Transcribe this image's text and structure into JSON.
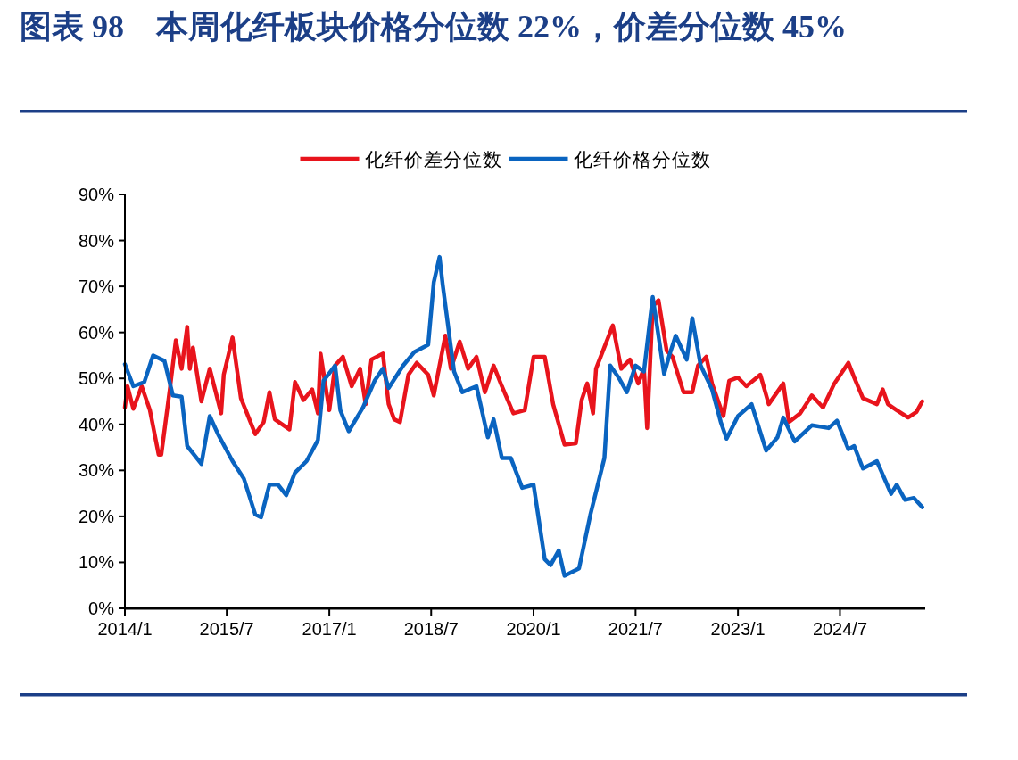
{
  "chart_data": {
    "type": "line",
    "title": "图表 98　本周化纤板块价格分位数 22%，价差分位数 45%",
    "legend": "top",
    "xlim": [
      "2014-01-01",
      "2025-10-01"
    ],
    "xticks": [
      {
        "value": "2014-01",
        "label": "2014/1"
      },
      {
        "value": "2015-07",
        "label": "2015/7"
      },
      {
        "value": "2017-01",
        "label": "2017/1"
      },
      {
        "value": "2018-07",
        "label": "2018/7"
      },
      {
        "value": "2020-01",
        "label": "2020/1"
      },
      {
        "value": "2021-07",
        "label": "2021/7"
      },
      {
        "value": "2023-01",
        "label": "2023/1"
      },
      {
        "value": "2024-07",
        "label": "2024/7"
      }
    ],
    "ylim": [
      0,
      90
    ],
    "yticks": [
      {
        "value": 0,
        "label": "0%"
      },
      {
        "value": 10,
        "label": "10%"
      },
      {
        "value": 20,
        "label": "20%"
      },
      {
        "value": 30,
        "label": "30%"
      },
      {
        "value": 40,
        "label": "40%"
      },
      {
        "value": 50,
        "label": "50%"
      },
      {
        "value": 60,
        "label": "60%"
      },
      {
        "value": 70,
        "label": "70%"
      },
      {
        "value": 80,
        "label": "80%"
      },
      {
        "value": 90,
        "label": "90%"
      }
    ],
    "series": [
      {
        "name": "化纤价差分位数",
        "color": "#e8141c",
        "x": [
          "2014-01-01",
          "2014-01-15",
          "2014-02-15",
          "2014-04-01",
          "2014-05-15",
          "2014-07-01",
          "2014-07-15",
          "2014-09-01",
          "2014-10-01",
          "2014-11-01",
          "2014-12-01",
          "2014-12-15",
          "2015-01-01",
          "2015-02-15",
          "2015-04-01",
          "2015-06-01",
          "2015-06-15",
          "2015-08-01",
          "2015-09-15",
          "2015-12-01",
          "2016-01-15",
          "2016-02-15",
          "2016-03-15",
          "2016-06-01",
          "2016-07-01",
          "2016-08-15",
          "2016-10-01",
          "2016-11-01",
          "2016-11-15",
          "2017-01-01",
          "2017-02-01",
          "2017-03-15",
          "2017-05-01",
          "2017-06-15",
          "2017-07-15",
          "2017-08-15",
          "2017-10-15",
          "2017-11-15",
          "2017-12-15",
          "2018-01-15",
          "2018-03-01",
          "2018-04-15",
          "2018-06-15",
          "2018-07-15",
          "2018-09-15",
          "2018-10-15",
          "2018-12-01",
          "2019-01-15",
          "2019-03-01",
          "2019-04-15",
          "2019-06-01",
          "2019-07-15",
          "2019-09-15",
          "2019-11-15",
          "2020-01-01",
          "2020-03-01",
          "2020-04-15",
          "2020-06-15",
          "2020-08-15",
          "2020-09-15",
          "2020-10-15",
          "2020-11-15",
          "2020-12-01",
          "2021-02-01",
          "2021-03-01",
          "2021-04-15",
          "2021-06-01",
          "2021-07-15",
          "2021-08-15",
          "2021-09-01",
          "2021-10-01",
          "2021-11-01",
          "2021-12-15",
          "2022-01-15",
          "2022-03-15",
          "2022-05-01",
          "2022-06-01",
          "2022-07-15",
          "2022-08-15",
          "2022-10-15",
          "2022-11-15",
          "2023-01-01",
          "2023-02-15",
          "2023-05-01",
          "2023-06-15",
          "2023-09-01",
          "2023-10-01",
          "2023-12-01",
          "2024-02-01",
          "2024-04-01",
          "2024-06-01",
          "2024-08-15",
          "2024-09-15",
          "2024-11-01",
          "2025-01-15",
          "2025-02-15",
          "2025-03-15",
          "2025-05-01",
          "2025-07-01",
          "2025-08-15",
          "2025-09-15"
        ],
        "values": [
          43.7,
          48.3,
          43.4,
          48.3,
          43.1,
          33.4,
          33.4,
          48.3,
          58.3,
          52.1,
          61.2,
          52.1,
          56.7,
          45,
          52.1,
          42.4,
          50.8,
          58.9,
          45.7,
          37.9,
          40.5,
          47,
          41.1,
          38.9,
          49.2,
          45.3,
          47.6,
          42.4,
          55.4,
          43.1,
          52.8,
          54.7,
          48.3,
          52.1,
          44.4,
          54.1,
          55.4,
          44.4,
          41.1,
          40.5,
          50.8,
          53.4,
          50.8,
          46.3,
          59.3,
          52.1,
          58,
          52.1,
          54.7,
          47,
          52.8,
          48.3,
          42.4,
          43.1,
          54.7,
          54.7,
          44.4,
          35.6,
          35.9,
          45.3,
          48.9,
          42.4,
          52.1,
          58.6,
          61.5,
          52.1,
          54.1,
          48.9,
          52.1,
          39.2,
          65.7,
          67,
          56,
          54.7,
          47,
          47,
          52.8,
          54.7,
          48.9,
          41.8,
          49.5,
          50.2,
          48.3,
          50.8,
          44.4,
          48.9,
          40.5,
          42.4,
          46.3,
          43.7,
          48.9,
          53.4,
          50.2,
          45.7,
          44.4,
          47.6,
          44.4,
          43.1,
          41.5,
          42.7,
          45
        ]
      },
      {
        "name": "化纤价格分位数",
        "color": "#0a64c0",
        "x": [
          "2014-01-01",
          "2014-02-15",
          "2014-04-15",
          "2014-06-01",
          "2014-08-01",
          "2014-09-15",
          "2014-11-01",
          "2014-12-01",
          "2015-02-15",
          "2015-04-01",
          "2015-05-15",
          "2015-08-01",
          "2015-10-01",
          "2015-12-01",
          "2016-01-01",
          "2016-02-15",
          "2016-04-01",
          "2016-05-15",
          "2016-07-01",
          "2016-09-01",
          "2016-11-01",
          "2016-12-01",
          "2017-02-01",
          "2017-03-01",
          "2017-04-15",
          "2017-07-01",
          "2017-09-01",
          "2017-10-15",
          "2017-11-15",
          "2018-02-01",
          "2018-04-01",
          "2018-06-15",
          "2018-07-15",
          "2018-08-15",
          "2018-09-01",
          "2018-11-01",
          "2018-12-15",
          "2019-03-01",
          "2019-05-01",
          "2019-06-01",
          "2019-07-15",
          "2019-09-01",
          "2019-11-01",
          "2020-01-01",
          "2020-03-01",
          "2020-04-01",
          "2020-05-15",
          "2020-06-15",
          "2020-09-01",
          "2020-11-01",
          "2021-01-15",
          "2021-02-15",
          "2021-04-01",
          "2021-05-15",
          "2021-07-01",
          "2021-08-15",
          "2021-10-01",
          "2021-12-01",
          "2022-01-01",
          "2022-02-01",
          "2022-04-01",
          "2022-05-01",
          "2022-06-15",
          "2022-08-15",
          "2022-10-01",
          "2022-11-01",
          "2023-01-01",
          "2023-03-15",
          "2023-06-01",
          "2023-08-01",
          "2023-09-01",
          "2023-11-01",
          "2024-02-01",
          "2024-05-01",
          "2024-06-15",
          "2024-08-15",
          "2024-09-15",
          "2024-11-01",
          "2025-01-15",
          "2025-04-01",
          "2025-05-01",
          "2025-06-15",
          "2025-08-01",
          "2025-09-15"
        ],
        "values": [
          53.1,
          48.3,
          49.2,
          55,
          53.8,
          46.3,
          46,
          35.3,
          31.4,
          41.8,
          37.9,
          32,
          28.2,
          20.4,
          19.8,
          26.9,
          26.9,
          24.6,
          29.5,
          32,
          36.6,
          49.5,
          52.8,
          43.1,
          38.5,
          43.7,
          49.5,
          52.1,
          47.9,
          52.8,
          55.7,
          57.3,
          70.9,
          76.4,
          70.3,
          51.5,
          47,
          48.3,
          37.2,
          41.1,
          32.7,
          32.7,
          26.2,
          26.9,
          10.7,
          9.4,
          12.6,
          7.1,
          8.7,
          20.4,
          32.7,
          52.8,
          50.2,
          47,
          52.8,
          51.5,
          67.7,
          51,
          55.4,
          59.3,
          54.1,
          63.1,
          52.8,
          47.6,
          40.5,
          36.9,
          41.8,
          44.4,
          34.3,
          37.2,
          41.5,
          36.3,
          39.8,
          39.2,
          40.8,
          34.6,
          35.3,
          30.4,
          32,
          24.9,
          26.9,
          23.6,
          24,
          22
        ]
      }
    ]
  }
}
